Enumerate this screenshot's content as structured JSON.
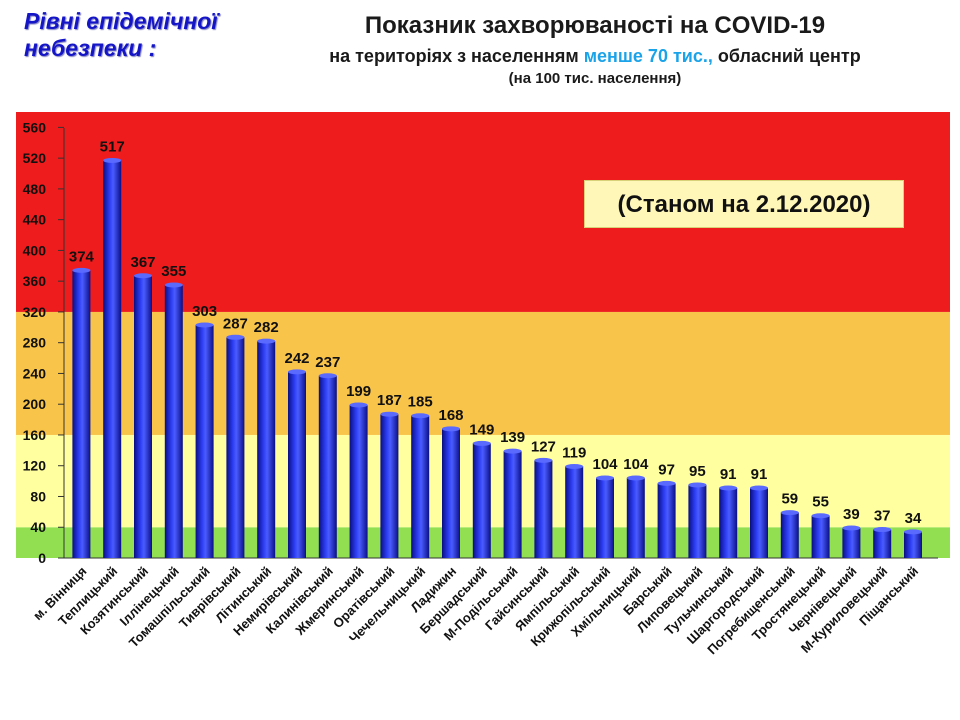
{
  "header": {
    "levels_title_line1": "Рівні епідемічної",
    "levels_title_line2": "небезпеки :",
    "title_line1": "Показник захворюваності на COVID-19",
    "title_line2_part1": "на територіях з населенням ",
    "title_line2_highlight": "менше 70 тис.,",
    "title_line2_part2": " обласний центр",
    "title_line3": "(на 100  тис. населення)",
    "date_note": "(Станом на 2.12.2020)"
  },
  "chart_data": {
    "type": "bar",
    "title": "Показник захворюваності на COVID-19",
    "ylim": [
      0,
      560
    ],
    "yticks": [
      0,
      40,
      80,
      120,
      160,
      200,
      240,
      280,
      320,
      360,
      400,
      440,
      480,
      520,
      560
    ],
    "grid": false,
    "categories": [
      "м. Вінниця",
      "Теплицький",
      "Козятинський",
      "Іллінецький",
      "Томашпільський",
      "Тиврівський",
      "Літинський",
      "Немирівський",
      "Калинівський",
      "Жмеринський",
      "Оратівський",
      "Чечельницький",
      "Ладижин",
      "Бершадський",
      "М-Подільський",
      "Гайсинський",
      "Ямпільський",
      "Крижопільський",
      "Хмільницький",
      "Барський",
      "Липовецький",
      "Тульчинський",
      "Шаргородський",
      "Погребищенський",
      "Тростянецький",
      "Чернівецький",
      "М-Куриловецький",
      "Піщанський"
    ],
    "values": [
      374,
      517,
      367,
      355,
      303,
      287,
      282,
      242,
      237,
      199,
      187,
      185,
      168,
      149,
      139,
      127,
      119,
      104,
      104,
      97,
      95,
      91,
      91,
      59,
      55,
      39,
      37,
      34
    ],
    "background_zones": [
      {
        "from": 0,
        "to": 40,
        "color": "#92e052"
      },
      {
        "from": 40,
        "to": 160,
        "color": "#ffffa0"
      },
      {
        "from": 160,
        "to": 320,
        "color": "#f9c44a"
      },
      {
        "from": 320,
        "to": 580,
        "color": "#ee1c1c"
      }
    ],
    "bar_color": "#1a28d8"
  }
}
